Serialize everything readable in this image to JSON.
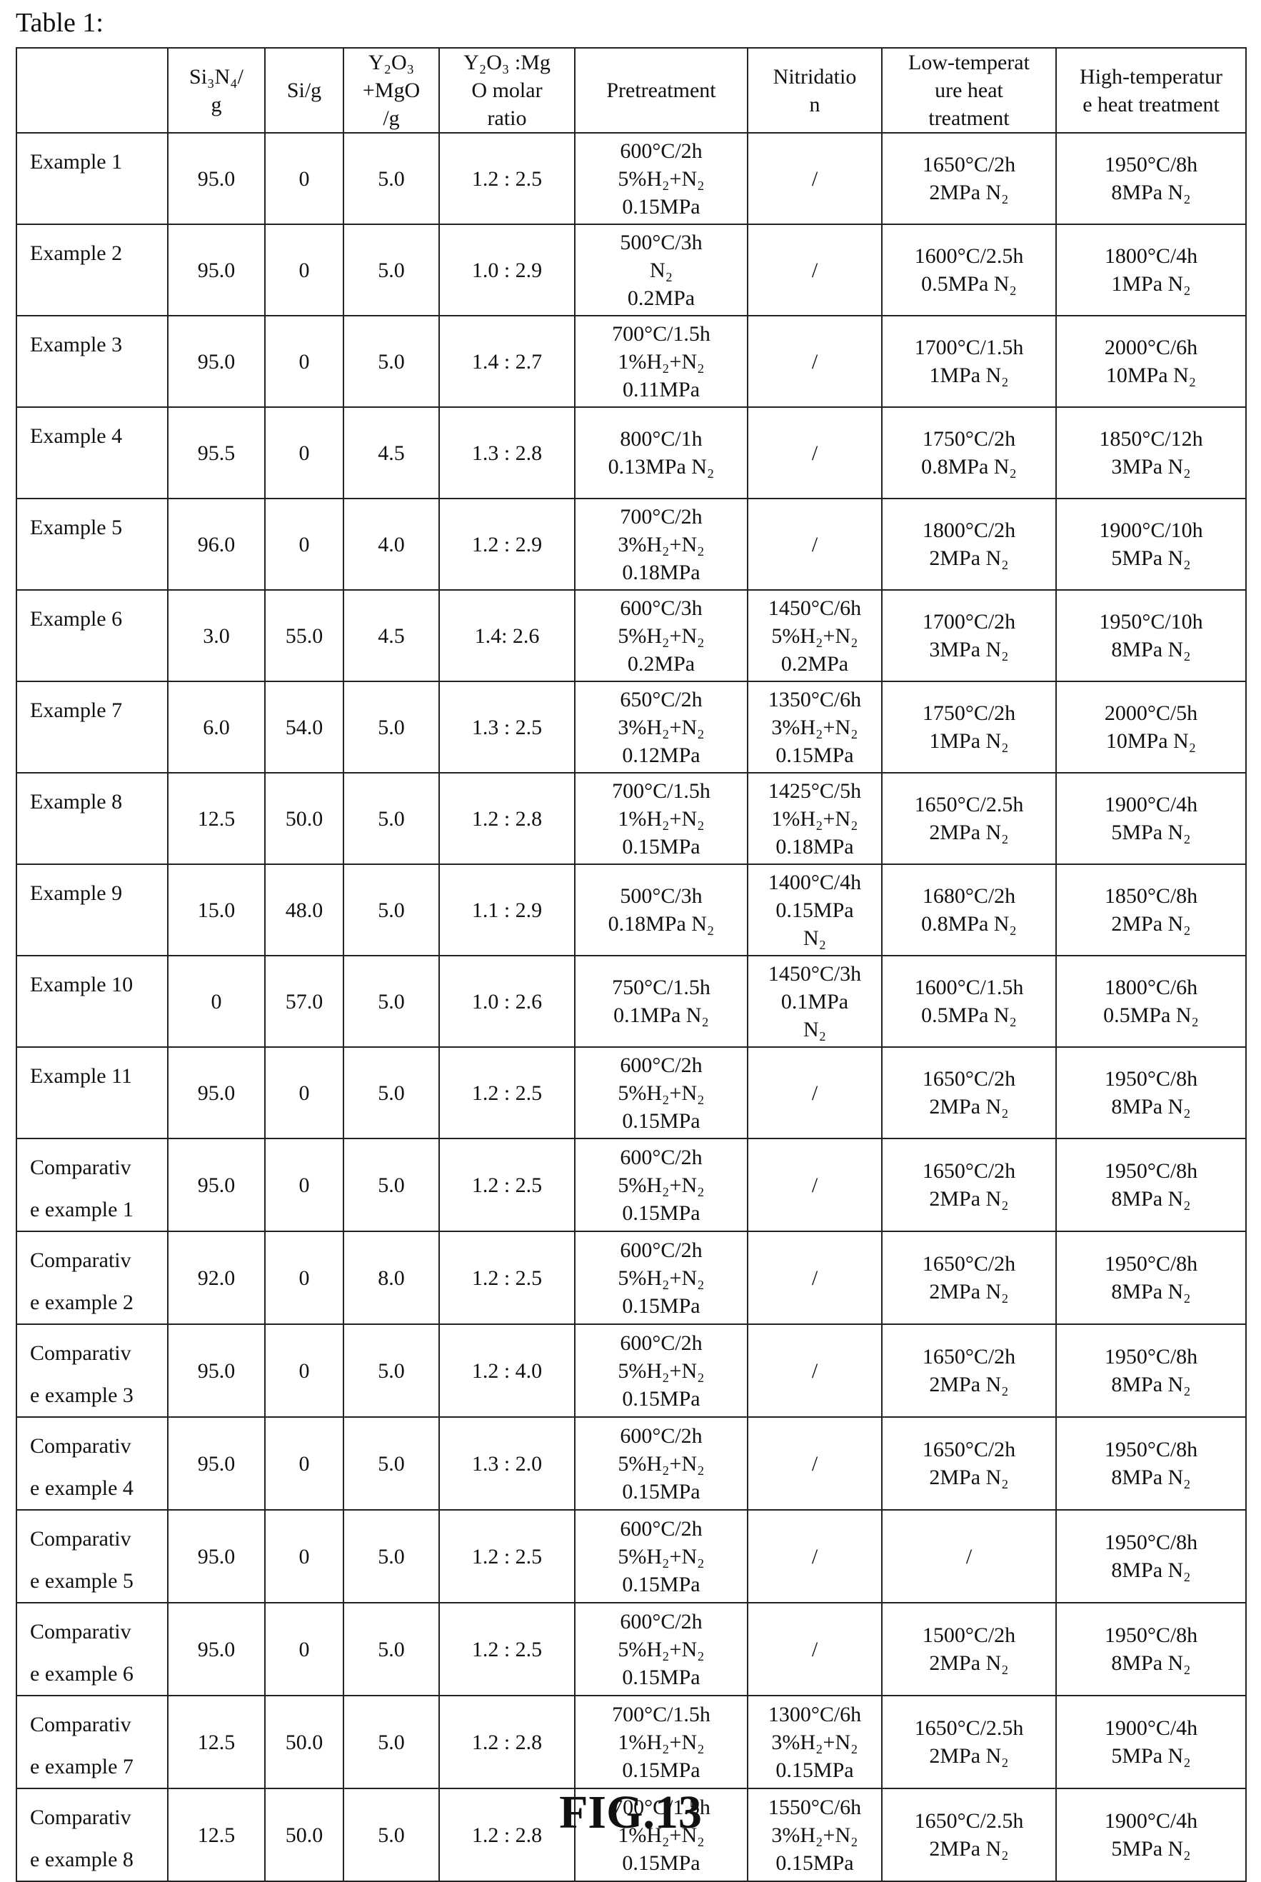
{
  "caption": "Table 1:",
  "figure_label": "FIG.13",
  "headers": [
    [
      ""
    ],
    [
      "Si₃N₄/",
      "g"
    ],
    [
      "Si/g"
    ],
    [
      "Y₂O₃",
      "+MgO",
      "/g"
    ],
    [
      "Y₂O₃ :Mg",
      "O molar",
      "ratio"
    ],
    [
      "Pretreatment"
    ],
    [
      "Nitridatio",
      "n"
    ],
    [
      "Low-temperat",
      "ure heat",
      "treatment"
    ],
    [
      "High-temperatur",
      "e heat treatment"
    ]
  ],
  "rows": [
    {
      "name": [
        "Example 1"
      ],
      "si3n4": "95.0",
      "si": "0",
      "y2o3_mgo": "5.0",
      "ratio": "1.2 : 2.5",
      "pretreatment": [
        "600°C/2h",
        "5%H₂+N₂",
        "0.15MPa"
      ],
      "nitridation": [
        "/"
      ],
      "low_temp": [
        "1650°C/2h",
        "2MPa N₂"
      ],
      "high_temp": [
        "1950°C/8h",
        "8MPa N₂"
      ]
    },
    {
      "name": [
        "Example 2"
      ],
      "si3n4": "95.0",
      "si": "0",
      "y2o3_mgo": "5.0",
      "ratio": "1.0 : 2.9",
      "pretreatment": [
        "500°C/3h",
        "N₂",
        "0.2MPa"
      ],
      "nitridation": [
        "/"
      ],
      "low_temp": [
        "1600°C/2.5h",
        "0.5MPa N₂"
      ],
      "high_temp": [
        "1800°C/4h",
        "1MPa N₂"
      ]
    },
    {
      "name": [
        "Example 3"
      ],
      "si3n4": "95.0",
      "si": "0",
      "y2o3_mgo": "5.0",
      "ratio": "1.4 : 2.7",
      "pretreatment": [
        "700°C/1.5h",
        "1%H₂+N₂",
        "0.11MPa"
      ],
      "nitridation": [
        "/"
      ],
      "low_temp": [
        "1700°C/1.5h",
        "1MPa N₂"
      ],
      "high_temp": [
        "2000°C/6h",
        "10MPa N₂"
      ]
    },
    {
      "name": [
        "Example 4"
      ],
      "si3n4": "95.5",
      "si": "0",
      "y2o3_mgo": "4.5",
      "ratio": "1.3 : 2.8",
      "pretreatment": [
        "800°C/1h",
        "0.13MPa N₂"
      ],
      "nitridation": [
        "/"
      ],
      "low_temp": [
        "1750°C/2h",
        "0.8MPa N₂"
      ],
      "high_temp": [
        "1850°C/12h",
        "3MPa N₂"
      ]
    },
    {
      "name": [
        "Example 5"
      ],
      "si3n4": "96.0",
      "si": "0",
      "y2o3_mgo": "4.0",
      "ratio": "1.2 : 2.9",
      "pretreatment": [
        "700°C/2h",
        "3%H₂+N₂",
        "0.18MPa"
      ],
      "nitridation": [
        "/"
      ],
      "low_temp": [
        "1800°C/2h",
        "2MPa N₂"
      ],
      "high_temp": [
        "1900°C/10h",
        "5MPa N₂"
      ]
    },
    {
      "name": [
        "Example 6"
      ],
      "si3n4": "3.0",
      "si": "55.0",
      "y2o3_mgo": "4.5",
      "ratio": "1.4: 2.6",
      "pretreatment": [
        "600°C/3h",
        "5%H₂+N₂",
        "0.2MPa"
      ],
      "nitridation": [
        "1450°C/6h",
        "5%H₂+N₂",
        "0.2MPa"
      ],
      "low_temp": [
        "1700°C/2h",
        "3MPa N₂"
      ],
      "high_temp": [
        "1950°C/10h",
        "8MPa N₂"
      ]
    },
    {
      "name": [
        "Example 7"
      ],
      "si3n4": "6.0",
      "si": "54.0",
      "y2o3_mgo": "5.0",
      "ratio": "1.3 : 2.5",
      "pretreatment": [
        "650°C/2h",
        "3%H₂+N₂",
        "0.12MPa"
      ],
      "nitridation": [
        "1350°C/6h",
        "3%H₂+N₂",
        "0.15MPa"
      ],
      "low_temp": [
        "1750°C/2h",
        "1MPa N₂"
      ],
      "high_temp": [
        "2000°C/5h",
        "10MPa N₂"
      ]
    },
    {
      "name": [
        "Example 8"
      ],
      "si3n4": "12.5",
      "si": "50.0",
      "y2o3_mgo": "5.0",
      "ratio": "1.2 : 2.8",
      "pretreatment": [
        "700°C/1.5h",
        "1%H₂+N₂",
        "0.15MPa"
      ],
      "nitridation": [
        "1425°C/5h",
        "1%H₂+N₂",
        "0.18MPa"
      ],
      "low_temp": [
        "1650°C/2.5h",
        "2MPa N₂"
      ],
      "high_temp": [
        "1900°C/4h",
        "5MPa N₂"
      ]
    },
    {
      "name": [
        "Example 9"
      ],
      "si3n4": "15.0",
      "si": "48.0",
      "y2o3_mgo": "5.0",
      "ratio": "1.1 : 2.9",
      "pretreatment": [
        "500°C/3h",
        "0.18MPa N₂"
      ],
      "nitridation": [
        "1400°C/4h",
        "0.15MPa",
        "N₂"
      ],
      "low_temp": [
        "1680°C/2h",
        "0.8MPa N₂"
      ],
      "high_temp": [
        "1850°C/8h",
        "2MPa N₂"
      ]
    },
    {
      "name": [
        "Example 10"
      ],
      "si3n4": "0",
      "si": "57.0",
      "y2o3_mgo": "5.0",
      "ratio": "1.0 : 2.6",
      "pretreatment": [
        "750°C/1.5h",
        "0.1MPa N₂"
      ],
      "nitridation": [
        "1450°C/3h",
        "0.1MPa",
        "N₂"
      ],
      "low_temp": [
        "1600°C/1.5h",
        "0.5MPa N₂"
      ],
      "high_temp": [
        "1800°C/6h",
        "0.5MPa N₂"
      ]
    },
    {
      "name": [
        "Example 11"
      ],
      "si3n4": "95.0",
      "si": "0",
      "y2o3_mgo": "5.0",
      "ratio": "1.2 : 2.5",
      "pretreatment": [
        "600°C/2h",
        "5%H₂+N₂",
        "0.15MPa"
      ],
      "nitridation": [
        "/"
      ],
      "low_temp": [
        "1650°C/2h",
        "2MPa N₂"
      ],
      "high_temp": [
        "1950°C/8h",
        "8MPa N₂"
      ]
    },
    {
      "name": [
        "Comparativ",
        "e example 1"
      ],
      "si3n4": "95.0",
      "si": "0",
      "y2o3_mgo": "5.0",
      "ratio": "1.2 : 2.5",
      "pretreatment": [
        "600°C/2h",
        "5%H₂+N₂",
        "0.15MPa"
      ],
      "nitridation": [
        "/"
      ],
      "low_temp": [
        "1650°C/2h",
        "2MPa N₂"
      ],
      "high_temp": [
        "1950°C/8h",
        "8MPa N₂"
      ]
    },
    {
      "name": [
        "Comparativ",
        "e example 2"
      ],
      "si3n4": "92.0",
      "si": "0",
      "y2o3_mgo": "8.0",
      "ratio": "1.2 : 2.5",
      "pretreatment": [
        "600°C/2h",
        "5%H₂+N₂",
        "0.15MPa"
      ],
      "nitridation": [
        "/"
      ],
      "low_temp": [
        "1650°C/2h",
        "2MPa N₂"
      ],
      "high_temp": [
        "1950°C/8h",
        "8MPa N₂"
      ]
    },
    {
      "name": [
        "Comparativ",
        "e example 3"
      ],
      "si3n4": "95.0",
      "si": "0",
      "y2o3_mgo": "5.0",
      "ratio": "1.2 : 4.0",
      "pretreatment": [
        "600°C/2h",
        "5%H₂+N₂",
        "0.15MPa"
      ],
      "nitridation": [
        "/"
      ],
      "low_temp": [
        "1650°C/2h",
        "2MPa N₂"
      ],
      "high_temp": [
        "1950°C/8h",
        "8MPa N₂"
      ]
    },
    {
      "name": [
        "Comparativ",
        "e example 4"
      ],
      "si3n4": "95.0",
      "si": "0",
      "y2o3_mgo": "5.0",
      "ratio": "1.3 : 2.0",
      "pretreatment": [
        "600°C/2h",
        "5%H₂+N₂",
        "0.15MPa"
      ],
      "nitridation": [
        "/"
      ],
      "low_temp": [
        "1650°C/2h",
        "2MPa N₂"
      ],
      "high_temp": [
        "1950°C/8h",
        "8MPa N₂"
      ]
    },
    {
      "name": [
        "Comparativ",
        "e example 5"
      ],
      "si3n4": "95.0",
      "si": "0",
      "y2o3_mgo": "5.0",
      "ratio": "1.2 : 2.5",
      "pretreatment": [
        "600°C/2h",
        "5%H₂+N₂",
        "0.15MPa"
      ],
      "nitridation": [
        "/"
      ],
      "low_temp": [
        "/"
      ],
      "high_temp": [
        "1950°C/8h",
        "8MPa N₂"
      ]
    },
    {
      "name": [
        "Comparativ",
        "e example 6"
      ],
      "si3n4": "95.0",
      "si": "0",
      "y2o3_mgo": "5.0",
      "ratio": "1.2 : 2.5",
      "pretreatment": [
        "600°C/2h",
        "5%H₂+N₂",
        "0.15MPa"
      ],
      "nitridation": [
        "/"
      ],
      "low_temp": [
        "1500°C/2h",
        "2MPa N₂"
      ],
      "high_temp": [
        "1950°C/8h",
        "8MPa N₂"
      ]
    },
    {
      "name": [
        "Comparativ",
        "e example 7"
      ],
      "si3n4": "12.5",
      "si": "50.0",
      "y2o3_mgo": "5.0",
      "ratio": "1.2 : 2.8",
      "pretreatment": [
        "700°C/1.5h",
        "1%H₂+N₂",
        "0.15MPa"
      ],
      "nitridation": [
        "1300°C/6h",
        "3%H₂+N₂",
        "0.15MPa"
      ],
      "low_temp": [
        "1650°C/2.5h",
        "2MPa N₂"
      ],
      "high_temp": [
        "1900°C/4h",
        "5MPa N₂"
      ]
    },
    {
      "name": [
        "Comparativ",
        "e example 8"
      ],
      "si3n4": "12.5",
      "si": "50.0",
      "y2o3_mgo": "5.0",
      "ratio": "1.2 : 2.8",
      "pretreatment": [
        "700°C/1.5h",
        "1%H₂+N₂",
        "0.15MPa"
      ],
      "nitridation": [
        "1550°C/6h",
        "3%H₂+N₂",
        "0.15MPa"
      ],
      "low_temp": [
        "1650°C/2.5h",
        "2MPa N₂"
      ],
      "high_temp": [
        "1900°C/4h",
        "5MPa N₂"
      ]
    }
  ]
}
